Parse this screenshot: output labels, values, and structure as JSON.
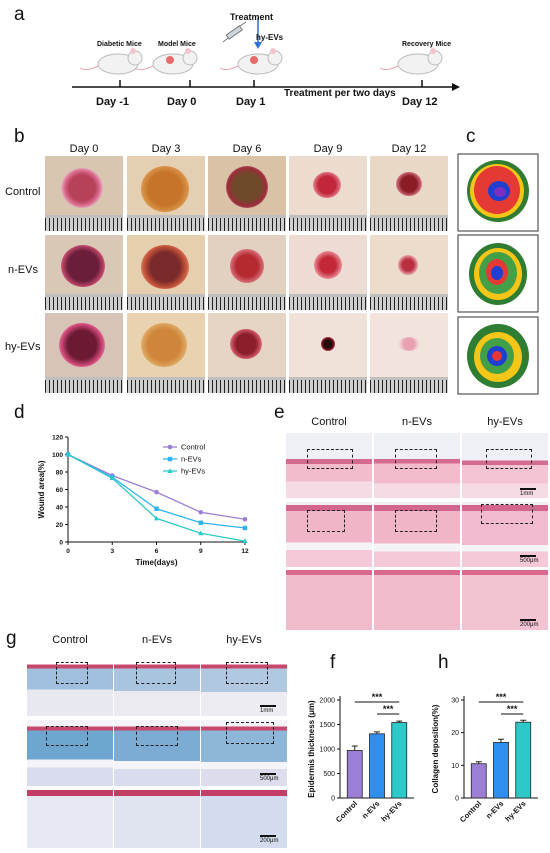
{
  "panels": {
    "a": "a",
    "b": "b",
    "c": "c",
    "d": "d",
    "e": "e",
    "f": "f",
    "g": "g",
    "h": "h"
  },
  "timeline": {
    "treatment_label": "Treatment",
    "agent_label": "hy-EVs",
    "mice": [
      "Diabetic Mice",
      "Model Mice",
      "Recovery Mice"
    ],
    "days": [
      "Day -1",
      "Day 0",
      "Day 1",
      "Day 12"
    ],
    "schedule": "Treatment per two days"
  },
  "wound_photos": {
    "columns": [
      "Day 0",
      "Day 3",
      "Day 6",
      "Day 9",
      "Day 12"
    ],
    "rows": [
      "Control",
      "n-EVs",
      "hy-EVs"
    ]
  },
  "histology_e": {
    "columns": [
      "Control",
      "n-EVs",
      "hy-EVs"
    ],
    "scales": [
      "1mm",
      "500μm",
      "200μm"
    ]
  },
  "histology_g": {
    "columns": [
      "Control",
      "n-EVs",
      "hy-EVs"
    ],
    "scales": [
      "1mm",
      "500μm",
      "200μm"
    ]
  },
  "colors": {
    "control": "#9b7fd4",
    "nevs": "#2fb2f0",
    "hyevs": "#2ec8c8"
  },
  "chart_data": [
    {
      "type": "line",
      "xlabel": "Time(days)",
      "ylabel": "Wound area(%)",
      "x": [
        0,
        3,
        6,
        9,
        12
      ],
      "xticks": [
        0,
        3,
        6,
        9,
        12
      ],
      "yticks": [
        0,
        20,
        40,
        60,
        80,
        100,
        120
      ],
      "ylim": [
        0,
        120
      ],
      "series": [
        {
          "name": "Control",
          "values": [
            100,
            76,
            57,
            34,
            26
          ]
        },
        {
          "name": "n-EVs",
          "values": [
            100,
            74,
            38,
            22,
            16
          ]
        },
        {
          "name": "hy-EVs",
          "values": [
            100,
            73,
            27,
            10,
            1
          ]
        }
      ],
      "legend": "top-right"
    },
    {
      "type": "bar",
      "ylabel": "Epidermis thickness (μm)",
      "categories": [
        "Control",
        "n-EVs",
        "hy-EVs"
      ],
      "values": [
        970,
        1310,
        1540
      ],
      "errors": [
        90,
        40,
        30
      ],
      "yticks": [
        0,
        500,
        1000,
        1500,
        2000
      ],
      "ylim": [
        0,
        2000
      ],
      "significance": [
        "***",
        "***"
      ]
    },
    {
      "type": "bar",
      "ylabel": "Collagen deposition(%)",
      "categories": [
        "Control",
        "n-EVs",
        "hy-EVs"
      ],
      "values": [
        10.5,
        17,
        23.2
      ],
      "errors": [
        0.6,
        1,
        0.6
      ],
      "yticks": [
        0,
        10,
        20,
        30
      ],
      "ylim": [
        0,
        30
      ],
      "significance": [
        "***",
        "***"
      ]
    }
  ]
}
